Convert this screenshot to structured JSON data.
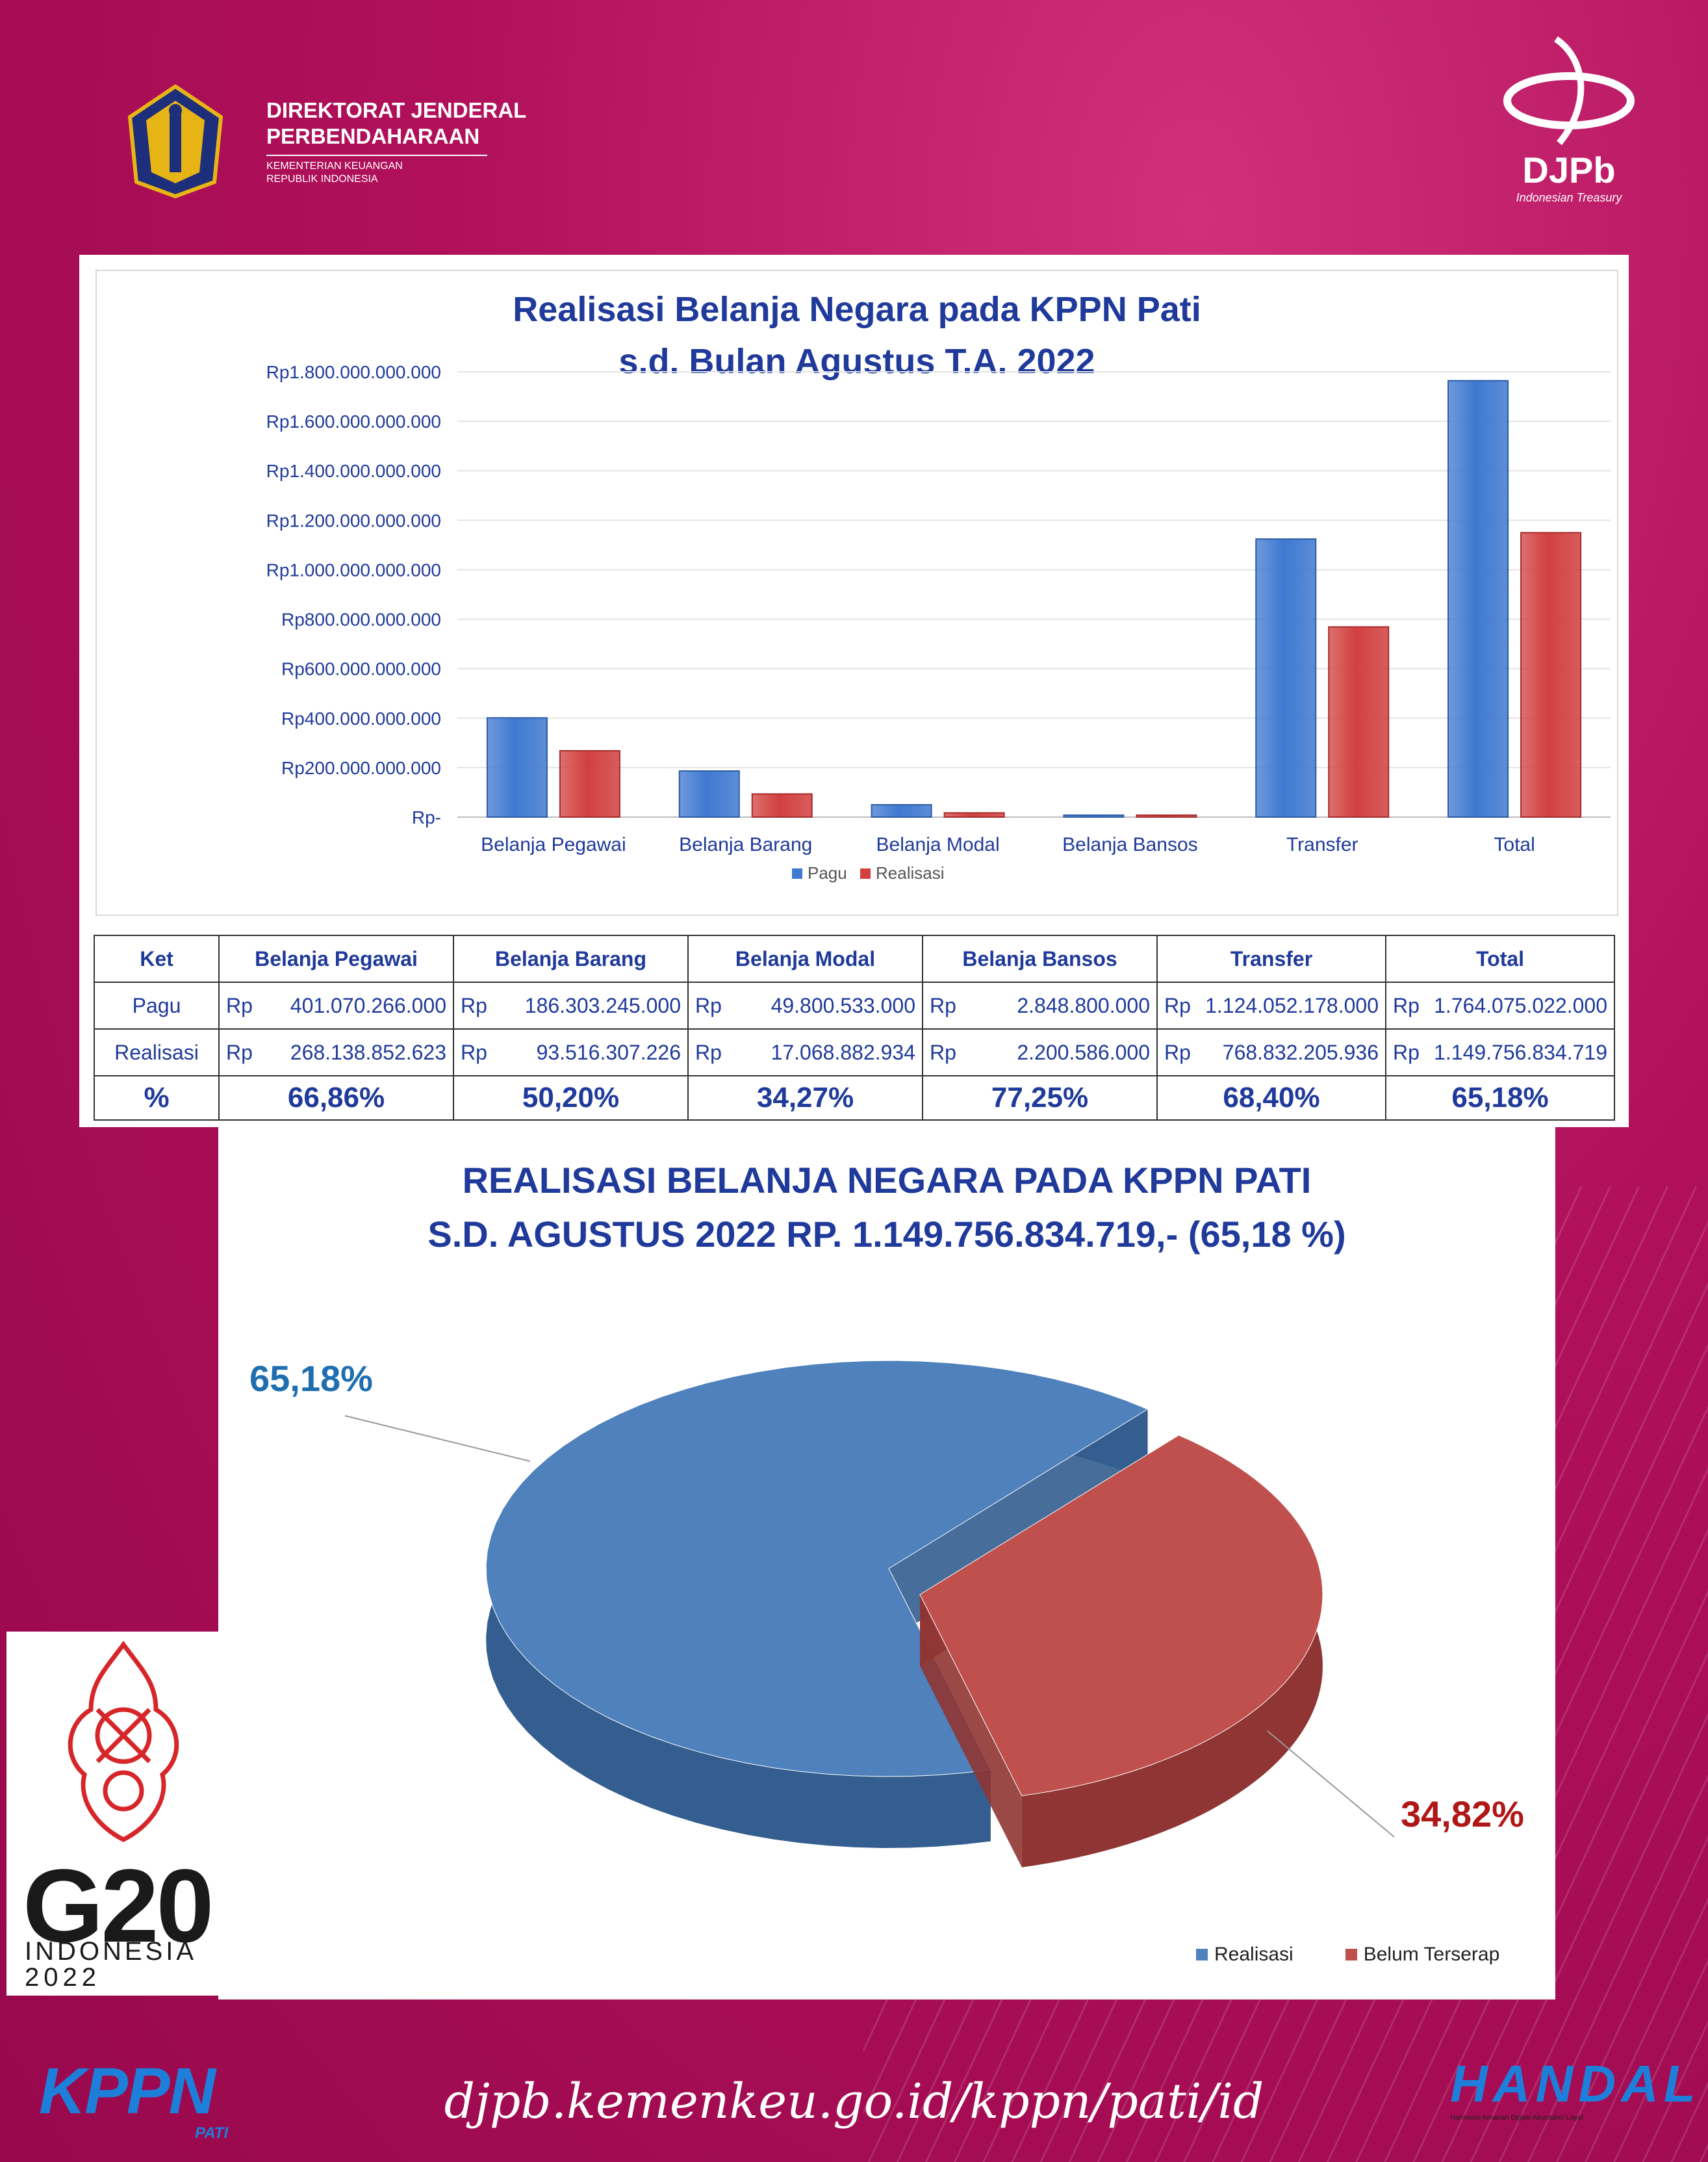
{
  "header": {
    "org_line1": "DIREKTORAT JENDERAL",
    "org_line2": "PERBENDAHARAAN",
    "org_line3": "KEMENTERIAN KEUANGAN",
    "org_line4": "REPUBLIK INDONESIA",
    "djpb_name": "DJPb",
    "djpb_tagline": "Indonesian Treasury"
  },
  "colors": {
    "pagu": "#3f79d0",
    "realisasi": "#d24040",
    "title": "#1f3a9a",
    "pie_realisasi": "#4f81bd",
    "pie_belum": "#c0504d"
  },
  "chart_data": [
    {
      "type": "bar",
      "title": "Realisasi Belanja Negara pada KPPN Pati",
      "subtitle": "s.d. Bulan Agustus T.A. 2022",
      "categories": [
        "Belanja Pegawai",
        "Belanja Barang",
        "Belanja Modal",
        "Belanja Bansos",
        "Transfer",
        "Total"
      ],
      "series": [
        {
          "name": "Pagu",
          "values": [
            401070266000,
            186303245000,
            49800533000,
            2848800000,
            1124052178000,
            1764075022000
          ]
        },
        {
          "name": "Realisasi",
          "values": [
            268138852623,
            93516307226,
            17068882934,
            2200586000,
            768832205936,
            1149756834719
          ]
        }
      ],
      "ylim": [
        0,
        1800000000000
      ],
      "yticks": [
        "Rp-",
        "Rp200.000.000.000",
        "Rp400.000.000.000",
        "Rp600.000.000.000",
        "Rp800.000.000.000",
        "Rp1.000.000.000.000",
        "Rp1.200.000.000.000",
        "Rp1.400.000.000.000",
        "Rp1.600.000.000.000",
        "Rp1.800.000.000.000"
      ],
      "grid": true,
      "legend_position": "bottom"
    },
    {
      "type": "pie",
      "title": "REALISASI BELANJA NEGARA  PADA KPPN PATI",
      "subtitle": "S.D. AGUSTUS 2022 RP. 1.149.756.834.719,- (65,18 %)",
      "labels": [
        "Realisasi",
        "Belum Terserap"
      ],
      "values": [
        65.18,
        34.82
      ],
      "value_labels": [
        "65,18%",
        "34,82%"
      ],
      "legend_position": "bottom-right"
    }
  ],
  "table": {
    "headers": [
      "Ket",
      "Belanja Pegawai",
      "Belanja Barang",
      "Belanja Modal",
      "Belanja Bansos",
      "Transfer",
      "Total"
    ],
    "currency": "Rp",
    "rows": [
      {
        "label": "Pagu",
        "values": [
          "401.070.266.000",
          "186.303.245.000",
          "49.800.533.000",
          "2.848.800.000",
          "1.124.052.178.000",
          "1.764.075.022.000"
        ]
      },
      {
        "label": "Realisasi",
        "values": [
          "268.138.852.623",
          "93.516.307.226",
          "17.068.882.934",
          "2.200.586.000",
          "768.832.205.936",
          "1.149.756.834.719"
        ]
      }
    ],
    "pct_label": "%",
    "pct": [
      "66,86%",
      "50,20%",
      "34,27%",
      "77,25%",
      "68,40%",
      "65,18%"
    ]
  },
  "g20": {
    "mark": "G20",
    "country": "INDONESIA",
    "year": "2022"
  },
  "footer": {
    "kppn": "KPPN",
    "kppn_sub": "PATI",
    "url": "djpb.kemenkeu.go.id/kppn/pati/id",
    "handal": "HANDAL",
    "handal_sub": "Harmonis  Amanah  Digital  Akuntabel  Loyal"
  }
}
